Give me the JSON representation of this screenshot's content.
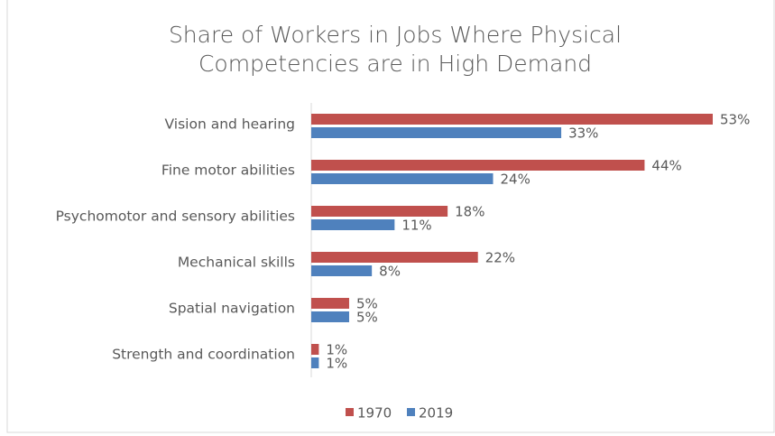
{
  "chart_data": {
    "type": "bar",
    "orientation": "horizontal",
    "title": "Share of Workers in Jobs Where Physical Competencies are in High Demand",
    "title_lines": [
      "Share of Workers in Jobs Where Physical",
      "Competencies are in High Demand"
    ],
    "categories": [
      "Vision and hearing",
      "Fine motor abilities",
      "Psychomotor and sensory abilities",
      "Mechanical skills",
      "Spatial navigation",
      "Strength and coordination"
    ],
    "series": [
      {
        "name": "1970",
        "color": "#c0504d",
        "values": [
          53,
          44,
          18,
          22,
          5,
          1
        ],
        "value_labels": [
          "53%",
          "44%",
          "18%",
          "22%",
          "5%",
          "1%"
        ]
      },
      {
        "name": "2019",
        "color": "#4f81bd",
        "values": [
          33,
          24,
          11,
          8,
          5,
          1
        ],
        "value_labels": [
          "33%",
          "24%",
          "11%",
          "8%",
          "5%",
          "1%"
        ]
      }
    ],
    "legend": "bottom"
  }
}
